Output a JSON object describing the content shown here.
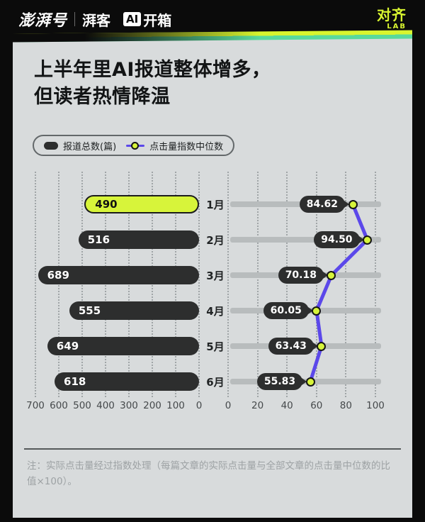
{
  "header": {
    "logo_pengpai": "澎湃号",
    "logo_paike": "湃客",
    "logo_ai_box": "AI",
    "logo_ai_suffix": "开箱",
    "logo_duiqi": "对齐",
    "logo_lab": "LAB"
  },
  "card": {
    "title_line1": "上半年里AI报道整体增多，",
    "title_line2": "但读者热情降温",
    "legend": [
      {
        "icon": "bar-pill-icon",
        "label": "报道总数(篇)"
      },
      {
        "icon": "line-dot-icon",
        "label": "点击量指数中位数"
      }
    ],
    "note": "注：实际点击量经过指数处理（每篇文章的实际点击量与全部文章的点击量中位数的比值×100）。"
  },
  "colors": {
    "background": "#0b0b0b",
    "card": "#d8dbdc",
    "bar_dark": "#2d2e2e",
    "highlight_yellow": "#d7f43a",
    "line_purple": "#5b48ea",
    "track_gray": "#b8bcbd",
    "brand_green": "#d9f530",
    "ribbon_teal": "#59d99c"
  },
  "chart_data": {
    "type": "bar",
    "subtype": "mirrored horizontal bar panel (left) + horizontal dot-line panel (right)",
    "title": "上半年里AI报道整体增多，但读者热情降温",
    "categories": [
      "1月",
      "2月",
      "3月",
      "4月",
      "5月",
      "6月"
    ],
    "series": [
      {
        "name": "报道总数(篇)",
        "chart": "bar",
        "values": [
          490,
          516,
          689,
          555,
          649,
          618
        ],
        "highlight_index": 0,
        "axis_range": [
          0,
          700
        ],
        "axis_ticks": [
          700,
          600,
          500,
          400,
          300,
          200,
          100,
          0
        ],
        "orientation": "right-to-left"
      },
      {
        "name": "点击量指数中位数",
        "chart": "line",
        "values": [
          84.62,
          94.5,
          70.18,
          60.05,
          63.43,
          55.83
        ],
        "value_labels": [
          "84.62",
          "94.50",
          "70.18",
          "60.05",
          "63.43",
          "55.83"
        ],
        "axis_range": [
          0,
          100
        ],
        "axis_ticks": [
          0,
          20,
          40,
          60,
          80,
          100
        ],
        "orientation": "left-to-right"
      }
    ],
    "grid": true,
    "legend_position": "top-left"
  }
}
